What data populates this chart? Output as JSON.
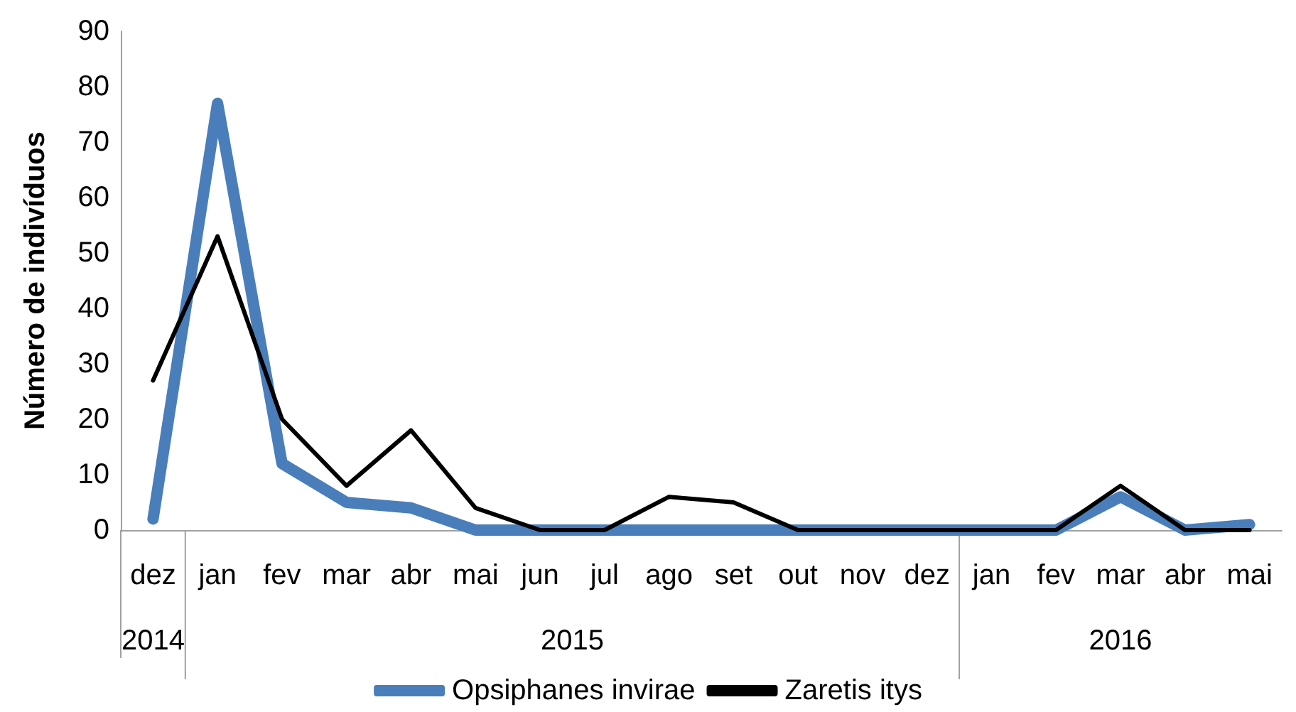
{
  "chart_data": {
    "type": "line",
    "ylabel": "Número de indivíduos",
    "categories": [
      "dez",
      "jan",
      "fev",
      "mar",
      "abr",
      "mai",
      "jun",
      "jul",
      "ago",
      "set",
      "out",
      "nov",
      "dez",
      "jan",
      "fev",
      "mar",
      "abr",
      "mai"
    ],
    "series": [
      {
        "name": "Opsiphanes invirae",
        "color": "#4a7ebb",
        "values": [
          2,
          77,
          12,
          5,
          4,
          0,
          0,
          0,
          0,
          0,
          0,
          0,
          0,
          0,
          0,
          6,
          0,
          1
        ]
      },
      {
        "name": "Zaretis itys",
        "color": "#000000",
        "values": [
          27,
          53,
          20,
          8,
          18,
          4,
          0,
          0,
          6,
          5,
          0,
          0,
          0,
          0,
          0,
          8,
          0,
          0
        ]
      }
    ],
    "ylim": [
      0,
      90
    ],
    "yticks": [
      0,
      10,
      20,
      30,
      40,
      50,
      60,
      70,
      80,
      90
    ],
    "annotations": [
      "2014",
      "2015",
      "2016"
    ],
    "grid": false,
    "legend": "bottom",
    "marker": "none"
  }
}
